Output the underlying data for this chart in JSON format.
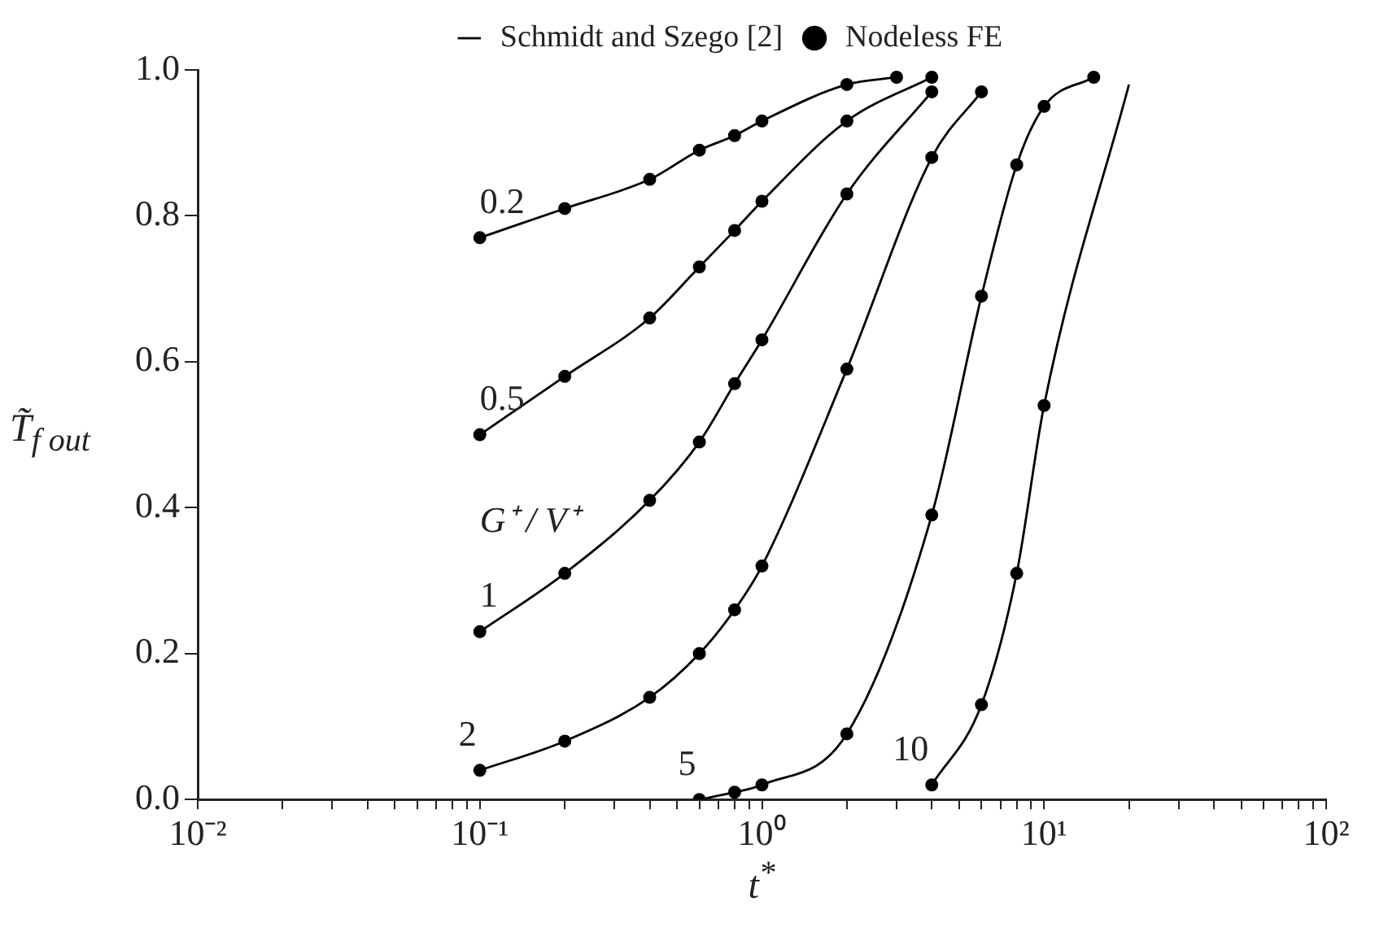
{
  "chart_data": {
    "type": "line",
    "xlabel": "t$^{*}$",
    "ylabel": "T̃$_{f out}$",
    "xlim": [
      0.01,
      100
    ],
    "xticks": [
      {
        "value": 0.01,
        "label": "10⁻²"
      },
      {
        "value": 0.02,
        "label": null
      },
      {
        "value": 0.03,
        "label": null
      },
      {
        "value": 0.04,
        "label": null
      },
      {
        "value": 0.05,
        "label": null
      },
      {
        "value": 0.06,
        "label": null
      },
      {
        "value": 0.07,
        "label": null
      },
      {
        "value": 0.08,
        "label": null
      },
      {
        "value": 0.09,
        "label": null
      },
      {
        "value": 0.1,
        "label": "10⁻¹"
      },
      {
        "value": 0.2,
        "label": null
      },
      {
        "value": 0.3,
        "label": null
      },
      {
        "value": 0.4,
        "label": null
      },
      {
        "value": 0.5,
        "label": null
      },
      {
        "value": 0.6,
        "label": null
      },
      {
        "value": 0.7,
        "label": null
      },
      {
        "value": 0.8,
        "label": null
      },
      {
        "value": 0.9,
        "label": null
      },
      {
        "value": 1,
        "label": "10⁰"
      },
      {
        "value": 2,
        "label": null
      },
      {
        "value": 3,
        "label": null
      },
      {
        "value": 4,
        "label": null
      },
      {
        "value": 5,
        "label": null
      },
      {
        "value": 6,
        "label": null
      },
      {
        "value": 7,
        "label": null
      },
      {
        "value": 8,
        "label": null
      },
      {
        "value": 9,
        "label": null
      },
      {
        "value": 10,
        "label": "10¹"
      },
      {
        "value": 20,
        "label": null
      },
      {
        "value": 30,
        "label": null
      },
      {
        "value": 40,
        "label": null
      },
      {
        "value": 50,
        "label": null
      },
      {
        "value": 60,
        "label": null
      },
      {
        "value": 70,
        "label": null
      },
      {
        "value": 80,
        "label": null
      },
      {
        "value": 90,
        "label": null
      },
      {
        "value": 100,
        "label": "10²"
      }
    ],
    "ylim": [
      0,
      1
    ],
    "yticks": [
      {
        "value": 0,
        "label": "0.0"
      },
      {
        "value": 0.2,
        "label": "0.2"
      },
      {
        "value": 0.4,
        "label": "0.4"
      },
      {
        "value": 0.6,
        "label": "0.6"
      },
      {
        "value": 0.8,
        "label": "0.8"
      },
      {
        "value": 1,
        "label": "1.0"
      }
    ],
    "log": "x",
    "grid": false,
    "legend": "top",
    "line_style": "solid",
    "series": [
      {
        "marker": "none",
        "name": "Schmidt and Szego [2]",
        "color": "#000000",
        "x": [
          0.1,
          0.2,
          0.4,
          0.6,
          0.8,
          1,
          2,
          3
        ],
        "values": [
          0.77,
          0.81,
          0.85,
          0.89,
          0.91,
          0.93,
          0.98,
          0.99
        ]
      },
      {
        "marker": "none",
        "color": "#000000",
        "x": [
          0.1,
          0.2,
          0.4,
          0.6,
          0.8,
          1,
          2,
          4
        ],
        "values": [
          0.5,
          0.58,
          0.66,
          0.73,
          0.78,
          0.82,
          0.93,
          0.99
        ]
      },
      {
        "marker": "none",
        "color": "#000000",
        "x": [
          0.1,
          0.2,
          0.4,
          0.6,
          0.8,
          1,
          2,
          4
        ],
        "values": [
          0.23,
          0.31,
          0.41,
          0.49,
          0.57,
          0.63,
          0.83,
          0.97
        ]
      },
      {
        "marker": "none",
        "color": "#000000",
        "x": [
          0.1,
          0.2,
          0.4,
          0.6,
          0.8,
          1,
          2,
          4,
          6
        ],
        "values": [
          0.04,
          0.08,
          0.14,
          0.2,
          0.26,
          0.32,
          0.59,
          0.88,
          0.97
        ]
      },
      {
        "marker": "none",
        "color": "#000000",
        "x": [
          0.6,
          0.8,
          1,
          2,
          4,
          6,
          8,
          10,
          15
        ],
        "values": [
          0.0,
          0.01,
          0.02,
          0.09,
          0.39,
          0.69,
          0.87,
          0.95,
          0.99
        ]
      },
      {
        "marker": "none",
        "color": "#000000",
        "x": [
          4,
          6,
          8,
          10,
          20
        ],
        "values": [
          0.02,
          0.13,
          0.31,
          0.54,
          0.98
        ]
      },
      {
        "type": "scatter",
        "marker": "circle",
        "name": "Nodeless FE",
        "color": "#000000",
        "x": [
          0.1,
          0.2,
          0.4,
          0.6,
          0.8,
          1,
          2,
          3
        ],
        "values": [
          0.77,
          0.81,
          0.85,
          0.89,
          0.91,
          0.93,
          0.98,
          0.99
        ]
      },
      {
        "type": "scatter",
        "marker": "circle",
        "color": "#000000",
        "x": [
          0.1,
          0.2,
          0.4,
          0.6,
          0.8,
          1,
          2,
          4
        ],
        "values": [
          0.5,
          0.58,
          0.66,
          0.73,
          0.78,
          0.82,
          0.93,
          0.99
        ]
      },
      {
        "type": "scatter",
        "marker": "circle",
        "color": "#000000",
        "x": [
          0.1,
          0.2,
          0.4,
          0.6,
          0.8,
          1,
          2,
          4
        ],
        "values": [
          0.23,
          0.31,
          0.41,
          0.49,
          0.57,
          0.63,
          0.83,
          0.97
        ]
      },
      {
        "type": "scatter",
        "marker": "circle",
        "color": "#000000",
        "x": [
          0.1,
          0.2,
          0.4,
          0.6,
          0.8,
          1,
          2,
          4,
          6
        ],
        "values": [
          0.04,
          0.08,
          0.14,
          0.2,
          0.26,
          0.32,
          0.59,
          0.88,
          0.97
        ]
      },
      {
        "type": "scatter",
        "marker": "circle",
        "color": "#000000",
        "x": [
          0.6,
          0.8,
          1,
          2,
          4,
          6,
          8,
          10,
          15
        ],
        "values": [
          0.0,
          0.01,
          0.02,
          0.09,
          0.39,
          0.69,
          0.87,
          0.95,
          0.99
        ]
      },
      {
        "type": "scatter",
        "marker": "circle",
        "color": "#000000",
        "x": [
          4,
          6,
          8,
          10
        ],
        "values": [
          0.02,
          0.13,
          0.31,
          0.54
        ]
      }
    ],
    "legend_title": "G⁺ / V⁺",
    "annotations": [
      "0.2",
      "0.5",
      "1",
      "2",
      "5",
      "10"
    ]
  }
}
